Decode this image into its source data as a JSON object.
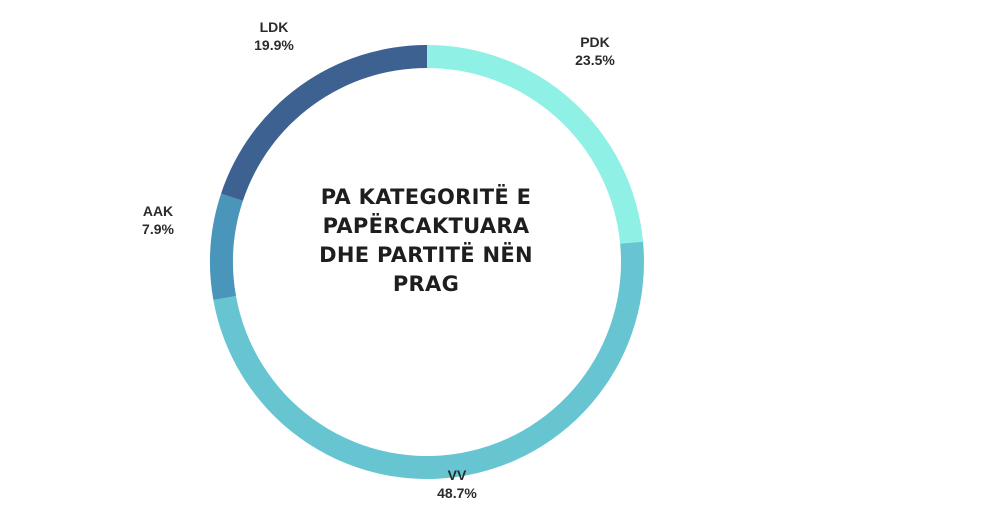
{
  "chart_data": {
    "type": "pie",
    "donut": true,
    "center_title_lines": [
      "PA KATEGORITË E",
      "PAPËRCAKTUARA",
      "DHE PARTITË NËN",
      "PRAG"
    ],
    "slices": [
      {
        "label": "PDK",
        "value": 23.5,
        "value_label": "23.5%",
        "color": "#8ff0e6"
      },
      {
        "label": "VV",
        "value": 48.7,
        "value_label": "48.7%",
        "color": "#66c5d1"
      },
      {
        "label": "AAK",
        "value": 7.9,
        "value_label": "7.9%",
        "color": "#4a96ba"
      },
      {
        "label": "LDK",
        "value": 19.9,
        "value_label": "19.9%",
        "color": "#3d6190"
      }
    ],
    "legend": "none"
  }
}
